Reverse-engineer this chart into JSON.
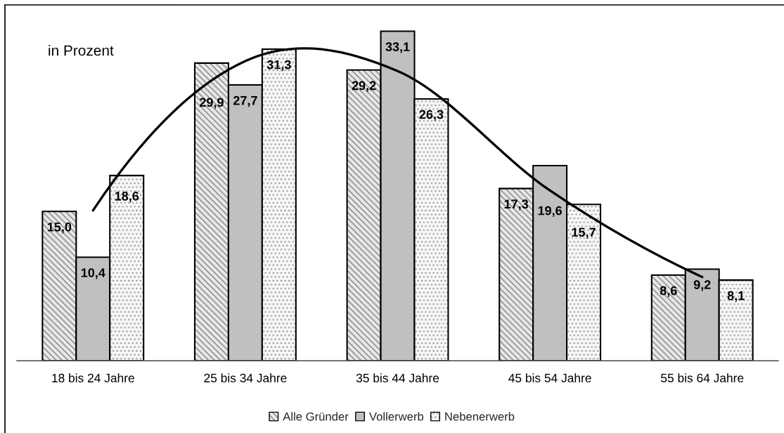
{
  "chart_data": {
    "type": "bar",
    "annotations": [
      "in Prozent"
    ],
    "categories": [
      "18 bis 24 Jahre",
      "25 bis 34 Jahre",
      "35 bis 44 Jahre",
      "45 bis 54 Jahre",
      "55 bis 64 Jahre"
    ],
    "series": [
      {
        "name": "Alle Gründer",
        "color": "#e8e8e8",
        "values": [
          15.0,
          29.9,
          29.2,
          17.3,
          8.6
        ],
        "value_labels": [
          "15,0",
          "29,9",
          "29,2",
          "17,3",
          "8,6"
        ]
      },
      {
        "name": "Vollerwerb",
        "color": "#c0c0c0",
        "values": [
          10.4,
          27.7,
          33.1,
          19.6,
          9.2
        ],
        "value_labels": [
          "10,4",
          "27,7",
          "33,1",
          "19,6",
          "9,2"
        ]
      },
      {
        "name": "Nebenerwerb",
        "color": "#f7f7f7",
        "values": [
          18.6,
          31.3,
          26.3,
          15.7,
          8.1
        ],
        "value_labels": [
          "18,6",
          "31,3",
          "26,3",
          "15,7",
          "8,1"
        ]
      },
      {
        "type": "line",
        "color": "#000000",
        "values": [
          15.1,
          30.1,
          29.1,
          17.1,
          8.4
        ]
      }
    ],
    "tick_labels": "x",
    "legend": "bottom"
  }
}
